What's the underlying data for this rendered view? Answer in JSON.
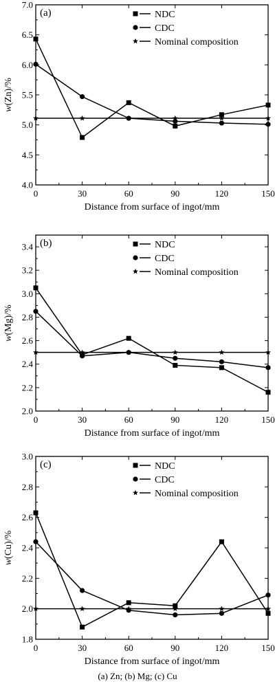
{
  "caption": "(a) Zn; (b) Mg; (c) Cu",
  "chart_data": [
    {
      "type": "line",
      "panel_label": "(a)",
      "xlabel": "Distance from surface of ingot/mm",
      "ylabel_italic": "w",
      "ylabel_rest": "(Zn)/%",
      "xlim": [
        0,
        150
      ],
      "ylim": [
        4.0,
        7.0
      ],
      "xticks": [
        0,
        30,
        60,
        90,
        120,
        150
      ],
      "xtick_labels": [
        "0",
        "30",
        "60",
        "90",
        "120",
        "150"
      ],
      "yticks": [
        4.0,
        4.5,
        5.0,
        5.5,
        6.0,
        6.5,
        7.0
      ],
      "ytick_labels": [
        "4.0",
        "4.5",
        "5.0",
        "5.5",
        "6.0",
        "6.5",
        "7.0"
      ],
      "x": [
        0,
        30,
        60,
        90,
        120,
        150
      ],
      "legend_position": "top-right",
      "series": [
        {
          "name": "NDC",
          "marker": "square",
          "values": [
            6.43,
            4.79,
            5.37,
            4.98,
            5.17,
            5.33
          ]
        },
        {
          "name": "CDC",
          "marker": "circle",
          "values": [
            6.01,
            5.47,
            5.11,
            5.06,
            5.03,
            5.01
          ]
        },
        {
          "name": "Nominal composition",
          "marker": "star",
          "values": [
            5.11,
            5.11,
            5.11,
            5.11,
            5.11,
            5.11
          ]
        }
      ]
    },
    {
      "type": "line",
      "panel_label": "(b)",
      "xlabel": "Distance from surface of ingot/mm",
      "ylabel_italic": "w",
      "ylabel_rest": "(Mg)/%",
      "xlim": [
        0,
        150
      ],
      "ylim": [
        2.0,
        3.5
      ],
      "xticks": [
        0,
        30,
        60,
        90,
        120,
        150
      ],
      "xtick_labels": [
        "0",
        "30",
        "60",
        "90",
        "120",
        "150"
      ],
      "yticks": [
        2.0,
        2.2,
        2.4,
        2.6,
        2.8,
        3.0,
        3.2,
        3.4
      ],
      "ytick_labels": [
        "2.0",
        "2.2",
        "2.4",
        "2.6",
        "2.8",
        "3.0",
        "3.2",
        "3.4"
      ],
      "x": [
        0,
        30,
        60,
        90,
        120,
        150
      ],
      "legend_position": "top-right",
      "series": [
        {
          "name": "NDC",
          "marker": "square",
          "values": [
            3.05,
            2.48,
            2.62,
            2.39,
            2.37,
            2.16
          ]
        },
        {
          "name": "CDC",
          "marker": "circle",
          "values": [
            2.85,
            2.47,
            2.5,
            2.45,
            2.42,
            2.37
          ]
        },
        {
          "name": "Nominal composition",
          "marker": "star",
          "values": [
            2.5,
            2.5,
            2.5,
            2.5,
            2.5,
            2.5
          ]
        }
      ]
    },
    {
      "type": "line",
      "panel_label": "(c)",
      "xlabel": "Distance from surface of ingot/mm",
      "ylabel_italic": "w",
      "ylabel_rest": "(Cu)/%",
      "xlim": [
        0,
        150
      ],
      "ylim": [
        1.8,
        3.0
      ],
      "xticks": [
        0,
        30,
        60,
        90,
        120,
        150
      ],
      "xtick_labels": [
        "0",
        "30",
        "60",
        "90",
        "120",
        "150"
      ],
      "yticks": [
        1.8,
        2.0,
        2.2,
        2.4,
        2.6,
        2.8,
        3.0
      ],
      "ytick_labels": [
        "1.8",
        "2.0",
        "2.2",
        "2.4",
        "2.6",
        "2.8",
        "3.0"
      ],
      "x": [
        0,
        30,
        60,
        90,
        120,
        150
      ],
      "legend_position": "top-right",
      "series": [
        {
          "name": "NDC",
          "marker": "square",
          "values": [
            2.63,
            1.88,
            2.04,
            2.02,
            2.44,
            1.97
          ]
        },
        {
          "name": "CDC",
          "marker": "circle",
          "values": [
            2.44,
            2.12,
            1.99,
            1.96,
            1.97,
            2.09
          ]
        },
        {
          "name": "Nominal composition",
          "marker": "star",
          "values": [
            2.0,
            2.0,
            2.0,
            2.0,
            2.0,
            2.0
          ]
        }
      ]
    }
  ]
}
